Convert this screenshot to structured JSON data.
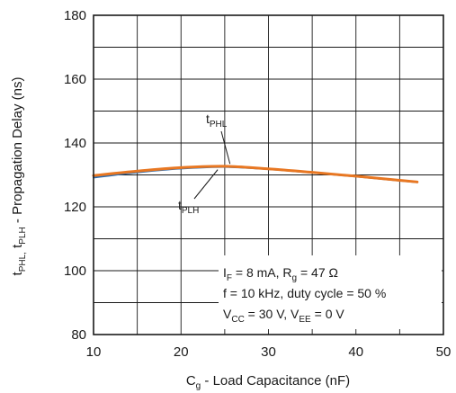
{
  "chart_data": {
    "type": "line",
    "xlabel": {
      "main": "C",
      "sub": "g",
      "rest": " - Load Capacitance (nF)"
    },
    "ylabel": {
      "p1": "t",
      "s1": "PHL,",
      "p2": " t",
      "s2": "PLH",
      "p3": " - Propagation Delay (ns)"
    },
    "xlim": [
      10,
      50
    ],
    "ylim": [
      80,
      180
    ],
    "xticks": [
      10,
      20,
      30,
      40,
      50
    ],
    "yticks": [
      80,
      100,
      120,
      140,
      160,
      180
    ],
    "grid": true,
    "series": [
      {
        "name": "tPHL",
        "color": "#e87722",
        "x": [
          10,
          15,
          20,
          25,
          30,
          35,
          40,
          45,
          47
        ],
        "y": [
          129.8,
          131.2,
          132.3,
          132.7,
          131.9,
          130.8,
          129.6,
          128.3,
          127.8
        ]
      },
      {
        "name": "tPLH",
        "color": "#2b6cb0",
        "x": [
          10,
          15,
          20,
          25,
          30,
          35,
          40,
          45,
          47
        ],
        "y": [
          129.2,
          130.8,
          132.0,
          132.5,
          131.8,
          130.7,
          129.5,
          128.2,
          127.7
        ]
      }
    ],
    "series_labels": [
      {
        "main": "t",
        "sub": "PHL"
      },
      {
        "main": "t",
        "sub": "PLH"
      }
    ],
    "conditions": [
      {
        "a": "I",
        "as": "F",
        "b": " = 8 mA, R",
        "bs": "g",
        "c": " = 47 Ω"
      },
      {
        "a": "f = 10 kHz, duty cycle = 50 %",
        "as": "",
        "b": "",
        "bs": "",
        "c": ""
      },
      {
        "a": "V",
        "as": "CC",
        "b": " = 30 V, V",
        "bs": "EE",
        "c": " = 0 V"
      }
    ]
  }
}
